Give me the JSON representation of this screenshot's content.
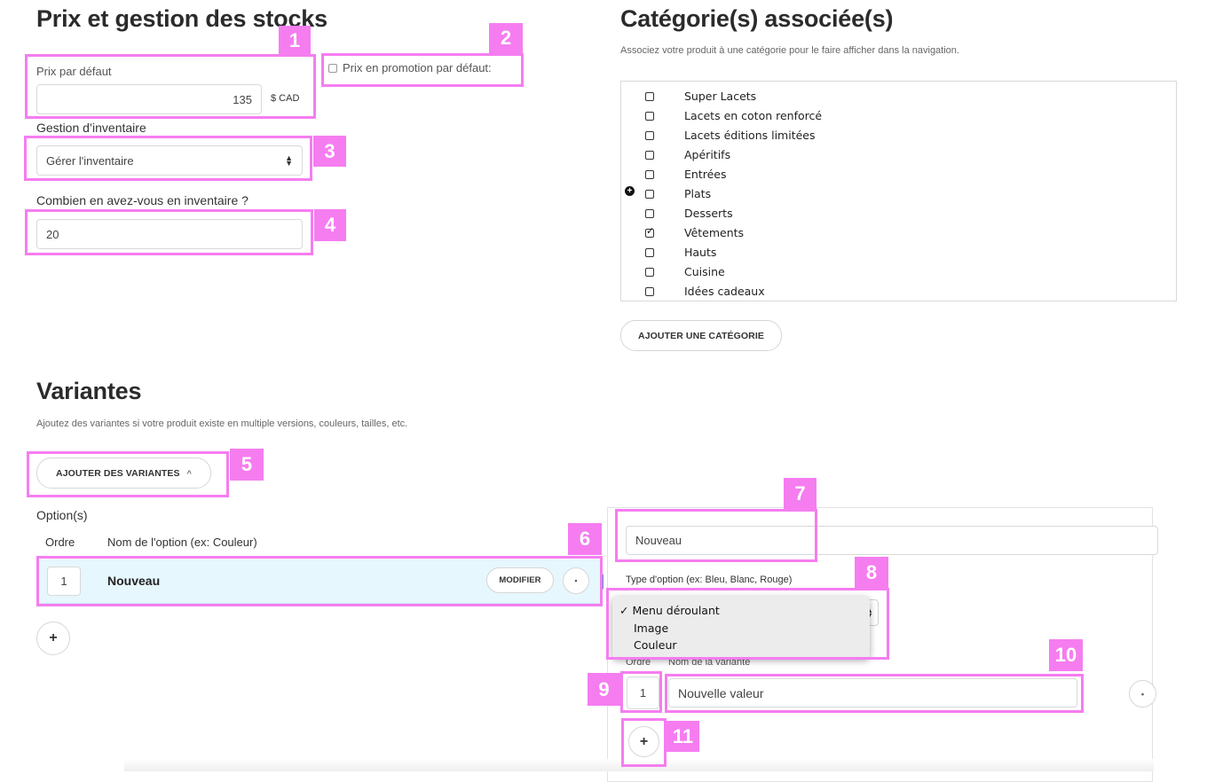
{
  "stock": {
    "title": "Prix et gestion des stocks",
    "price_label": "Prix par défaut",
    "price_value": "135",
    "currency": "$ CAD",
    "promo_label": "Prix en promotion par défaut:",
    "inventory_label": "Gestion d’inventaire",
    "inventory_select": "Gérer l'inventaire",
    "quantity_label": "Combien en avez-vous en inventaire ?",
    "quantity_value": "20"
  },
  "categories": {
    "title": "Catégorie(s) associée(s)",
    "subtitle": "Associez votre produit à une catégorie pour le faire afficher dans la navigation.",
    "items": [
      {
        "label": "Super Lacets",
        "checked": false
      },
      {
        "label": "Lacets en coton renforcé",
        "checked": false
      },
      {
        "label": "Lacets éditions limitées",
        "checked": false
      },
      {
        "label": "Apéritifs",
        "checked": false
      },
      {
        "label": "Entrées",
        "checked": false
      },
      {
        "label": "Plats",
        "checked": false
      },
      {
        "label": "Desserts",
        "checked": false
      },
      {
        "label": "Vêtements",
        "checked": true
      },
      {
        "label": "Hauts",
        "checked": false
      },
      {
        "label": "Cuisine",
        "checked": false
      },
      {
        "label": "Idées cadeaux",
        "checked": false
      }
    ],
    "add_button": "AJOUTER UNE CATÉGORIE"
  },
  "variants": {
    "title": "Variantes",
    "subtitle": "Ajoutez des variantes si votre produit existe en multiple versions, couleurs, tailles, etc.",
    "add_button": "AJOUTER DES VARIANTES",
    "options_label": "Option(s)",
    "col_order": "Ordre",
    "col_name": "Nom de l'option (ex: Couleur)",
    "option_order": "1",
    "option_name": "Nouveau",
    "modify_button": "MODIFIER",
    "add_symbol": "+"
  },
  "editor": {
    "name_value": "Nouveau",
    "type_label": "Type d'option (ex: Bleu, Blanc, Rouge)",
    "menu_items": [
      "Menu déroulant",
      "Image",
      "Couleur"
    ],
    "menu_checkmark": "✓",
    "col_order": "Ordre",
    "col_name": "Nom de la variante",
    "value_order": "1",
    "value_name": "Nouvelle valeur",
    "add_symbol": "+"
  },
  "annotations": [
    "1",
    "2",
    "3",
    "4",
    "5",
    "6",
    "7",
    "8",
    "9",
    "10",
    "11"
  ],
  "colors": {
    "highlight": "#f57df0",
    "selected_row": "#e6f7fd",
    "accent": "#3a9bd5"
  }
}
